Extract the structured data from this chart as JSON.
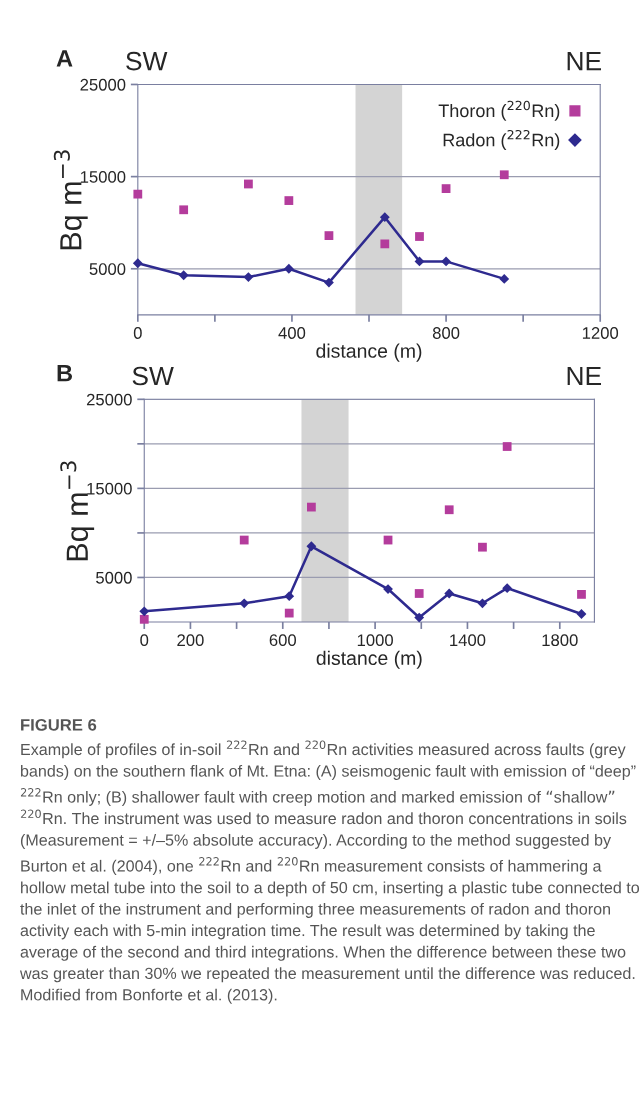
{
  "chart_data": [
    {
      "type": "scatter",
      "title": "A",
      "xlabel": "distance (m)",
      "ylabel": "Bq m$^{−3}$",
      "annotations": [
        "SW",
        "NE"
      ],
      "xlim": [
        0,
        1200
      ],
      "xticks": [
        0,
        {
          "value": 200,
          "label": null
        },
        400,
        {
          "value": 600,
          "label": null
        },
        800,
        {
          "value": 1000,
          "label": null
        },
        1200
      ],
      "ylim": [
        0,
        25000
      ],
      "yticks": [
        5000,
        15000,
        25000
      ],
      "grid": "y",
      "legend": "top right",
      "bands": [
        {
          "axis": "x",
          "from": 565,
          "to": 686,
          "color": "#d4d4d4"
        }
      ],
      "series": [
        {
          "name": "Thoron ($^{220}$Rn)",
          "marker": "square",
          "color": "#b43c9c",
          "x": [
            0,
            119,
            287,
            392,
            496,
            641,
            731,
            800,
            951
          ],
          "values": [
            13100,
            11400,
            14200,
            12400,
            8600,
            7700,
            8500,
            13700,
            15200
          ]
        },
        {
          "name": "Radon ($^{222}$Rn)",
          "type": "line",
          "marker": "diamond",
          "line_style": "solid",
          "color": "#2e2a8f",
          "x": [
            0,
            119,
            287,
            392,
            496,
            641,
            731,
            800,
            951
          ],
          "values": [
            5600,
            4300,
            4100,
            5000,
            3500,
            10600,
            5800,
            5800,
            3900
          ]
        }
      ]
    },
    {
      "type": "scatter",
      "title": "B",
      "xlabel": "distance (m)",
      "ylabel": "Bq m$^{−3}$",
      "annotations": [
        "SW",
        "NE",
        "FIGURE 6",
        "Example of profiles of in-soil $^{222}$Rn and $^{220}$Rn activities measured across faults (grey bands) on the southern flank of Mt. Etna: (A) seismogenic fault with emission of “deep” $^{222}$Rn only; (B) shallower fault with creep motion and marked emission of “shallow” $^{220}$Rn. The instrument was used to measure radon and thoron concentrations in soils (Measurement = +/–5% absolute accuracy). According to the method suggested by Burton et al. (2004), one $^{222}$Rn and $^{220}$Rn measurement consists of hammering a hollow metal tube into the soil to a depth of 50 cm, inserting a plastic tube connected to the inlet of the instrument and performing three measurements of radon and thoron activity each with 5-min integration time. The result was determined by taking the average of the second and third integrations. When the difference between these two was greater than 30% we repeated the measurement until the difference was reduced. Modified from Bonforte et al. (2013)."
      ],
      "xlim": [
        0,
        1950
      ],
      "xticks": [
        0,
        200,
        {
          "value": 400,
          "label": null
        },
        600,
        {
          "value": 800,
          "label": null
        },
        1000,
        {
          "value": 1200,
          "label": null
        },
        1400,
        {
          "value": 1600,
          "label": null
        },
        1800
      ],
      "ylim": [
        0,
        25000
      ],
      "yticks": [
        5000,
        {
          "value": 10000,
          "label": null
        },
        15000,
        {
          "value": 20000,
          "label": null
        },
        25000
      ],
      "grid": "y",
      "legend": false,
      "bands": [
        {
          "axis": "x",
          "from": 681,
          "to": 885,
          "color": "#d4d4d4"
        }
      ],
      "series": [
        {
          "marker": "square",
          "color": "#b43c9c",
          "x": [
            0,
            433,
            628,
            724,
            1056,
            1191,
            1321,
            1465,
            1572,
            1894
          ],
          "values": [
            300,
            9200,
            1000,
            12900,
            9200,
            3200,
            12600,
            8400,
            19700,
            3100
          ]
        },
        {
          "type": "line",
          "marker": "diamond",
          "line_style": "solid",
          "color": "#2e2a8f",
          "x": [
            0,
            433,
            628,
            724,
            1056,
            1191,
            1321,
            1465,
            1572,
            1894
          ],
          "values": [
            1200,
            2100,
            2900,
            8500,
            3700,
            500,
            3200,
            2100,
            3800,
            900
          ]
        }
      ]
    }
  ]
}
